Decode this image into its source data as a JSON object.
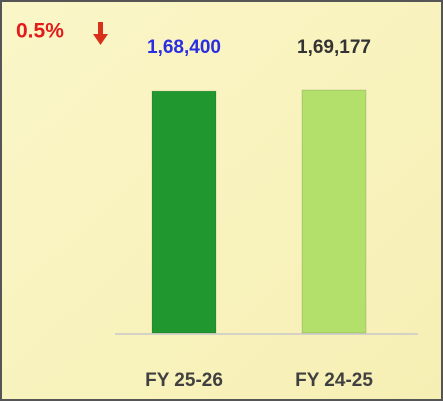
{
  "chart_data": {
    "type": "bar",
    "annotation": "0.5%",
    "categories": [
      "FY 25-26",
      "FY 24-25"
    ],
    "values": [
      168400,
      169177
    ],
    "value_labels": [
      "1,68,400",
      "1,69,177"
    ],
    "colors": [
      "#20982f",
      "#b3df6b"
    ],
    "value_label_colors": [
      "#2a2ee0",
      "#333333"
    ]
  }
}
